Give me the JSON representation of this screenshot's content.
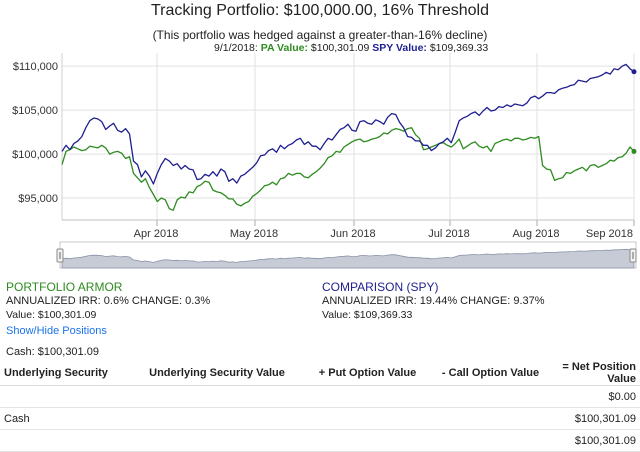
{
  "header": {
    "title": "Tracking Portfolio: $100,000.00, 16% Threshold",
    "subtitle": "(This portfolio was hedged against a greater-than-16% decline)",
    "date": "9/1/2018:",
    "pa_label": "PA Value:",
    "pa_value": "$100,301.09",
    "spy_label": "SPY Value:",
    "spy_value": "$109,369.33"
  },
  "colors": {
    "pa": "#2e8b20",
    "spy": "#1f1f8f",
    "link": "#1a73e8",
    "navigator": "#c6cbd6"
  },
  "chart_data": {
    "type": "line",
    "xlabels": [
      "Apr 2018",
      "May 2018",
      "Jun 2018",
      "Jul 2018",
      "Aug 2018",
      "Sep 2018"
    ],
    "ylabels": [
      "$110,000",
      "$105,000",
      "$100,000",
      "$95,000"
    ],
    "ylim": [
      92500,
      111500
    ],
    "grid": true,
    "series": [
      {
        "name": "PA Value",
        "color": "#2e8b20",
        "values": [
          98800,
          100300,
          100500,
          100800,
          100600,
          100400,
          100500,
          100900,
          100800,
          100700,
          101000,
          100700,
          100000,
          100200,
          100300,
          100100,
          99500,
          99700,
          97800,
          97300,
          96800,
          97200,
          96200,
          95400,
          94600,
          95000,
          94800,
          93800,
          93600,
          94800,
          95100,
          95000,
          95700,
          95600,
          96300,
          96500,
          96900,
          96800,
          95900,
          95700,
          95600,
          95300,
          94900,
          94900,
          94300,
          94100,
          94400,
          94600,
          95200,
          95500,
          95900,
          96400,
          96500,
          96800,
          96500,
          97200,
          97300,
          97800,
          97600,
          97800,
          97800,
          97400,
          97300,
          97700,
          98000,
          98400,
          98900,
          99600,
          99800,
          100300,
          100200,
          100800,
          101100,
          101400,
          101600,
          101700,
          101400,
          101500,
          101700,
          101800,
          102000,
          102400,
          102300,
          102700,
          102900,
          102800,
          102600,
          102900,
          103000,
          102200,
          101800,
          100500,
          100600,
          100800,
          101000,
          101200,
          101300,
          101000,
          100800,
          101200,
          101700,
          100600,
          100900,
          101200,
          101400,
          100900,
          100700,
          100900,
          100300,
          101200,
          101400,
          101600,
          101700,
          101500,
          101800,
          101800,
          101600,
          101700,
          101900,
          101800,
          102000,
          98700,
          98300,
          98200,
          97000,
          97200,
          97300,
          97900,
          97800,
          98100,
          98300,
          98500,
          98100,
          98700,
          98800,
          98500,
          98700,
          98900,
          99300,
          99200,
          99600,
          99700,
          100100,
          100800,
          100301
        ]
      },
      {
        "name": "SPY Value",
        "color": "#1f1f8f",
        "values": [
          100300,
          101000,
          100500,
          101200,
          101500,
          102000,
          103000,
          103800,
          104100,
          104000,
          103700,
          102800,
          103200,
          103500,
          102700,
          102500,
          102900,
          102300,
          99200,
          98800,
          97400,
          98100,
          97500,
          96600,
          97800,
          98800,
          99500,
          99200,
          98700,
          98900,
          98300,
          98700,
          98300,
          98200,
          97100,
          97200,
          97700,
          97500,
          98000,
          97500,
          98300,
          98000,
          96900,
          97200,
          96700,
          97500,
          97700,
          98100,
          98500,
          99000,
          99800,
          99900,
          100400,
          100600,
          100200,
          101000,
          100600,
          101000,
          101200,
          101600,
          101800,
          101100,
          101400,
          100900,
          100900,
          100500,
          101200,
          101800,
          101600,
          102200,
          102800,
          103000,
          103400,
          102700,
          102600,
          103700,
          103800,
          103500,
          103400,
          103900,
          103700,
          103400,
          104200,
          104600,
          104500,
          103600,
          103000,
          102000,
          101900,
          101500,
          101500,
          101000,
          101000,
          100400,
          100700,
          101200,
          101400,
          101800,
          101300,
          102500,
          103800,
          104100,
          104300,
          104600,
          104800,
          104400,
          104900,
          105300,
          104900,
          105000,
          105400,
          105300,
          105600,
          105400,
          105700,
          105600,
          105500,
          105800,
          106400,
          106600,
          106300,
          106600,
          107000,
          107000,
          106900,
          107300,
          107500,
          107600,
          107800,
          107900,
          108400,
          108300,
          108200,
          108600,
          108700,
          108800,
          109000,
          109300,
          109100,
          109700,
          109600,
          110000,
          110200,
          109700,
          109369
        ]
      }
    ]
  },
  "navigator": {
    "left_handle": "left-handle",
    "right_handle": "right-handle"
  },
  "pa": {
    "title": "PORTFOLIO ARMOR",
    "irr_line": "ANNUALIZED IRR: 0.6% CHANGE: 0.3%",
    "value_line": "Value: $100,301.09"
  },
  "spy": {
    "title": "COMPARISON (SPY)",
    "irr_line": "ANNUALIZED IRR: 19.44% CHANGE: 9.37%",
    "value_line": "Value: $109,369.33"
  },
  "toggle_link": "Show/Hide Positions",
  "cash_line": "Cash: $100,301.09",
  "positions": {
    "headers": [
      "Underlying Security",
      "Underlying Security Value",
      "+ Put Option Value",
      "- Call Option Value",
      "= Net Position Value"
    ],
    "rows": [
      [
        "",
        "",
        "",
        "",
        "$0.00"
      ],
      [
        "Cash",
        "",
        "",
        "",
        "$100,301.09"
      ],
      [
        "",
        "",
        "",
        "",
        "$100,301.09"
      ]
    ]
  }
}
